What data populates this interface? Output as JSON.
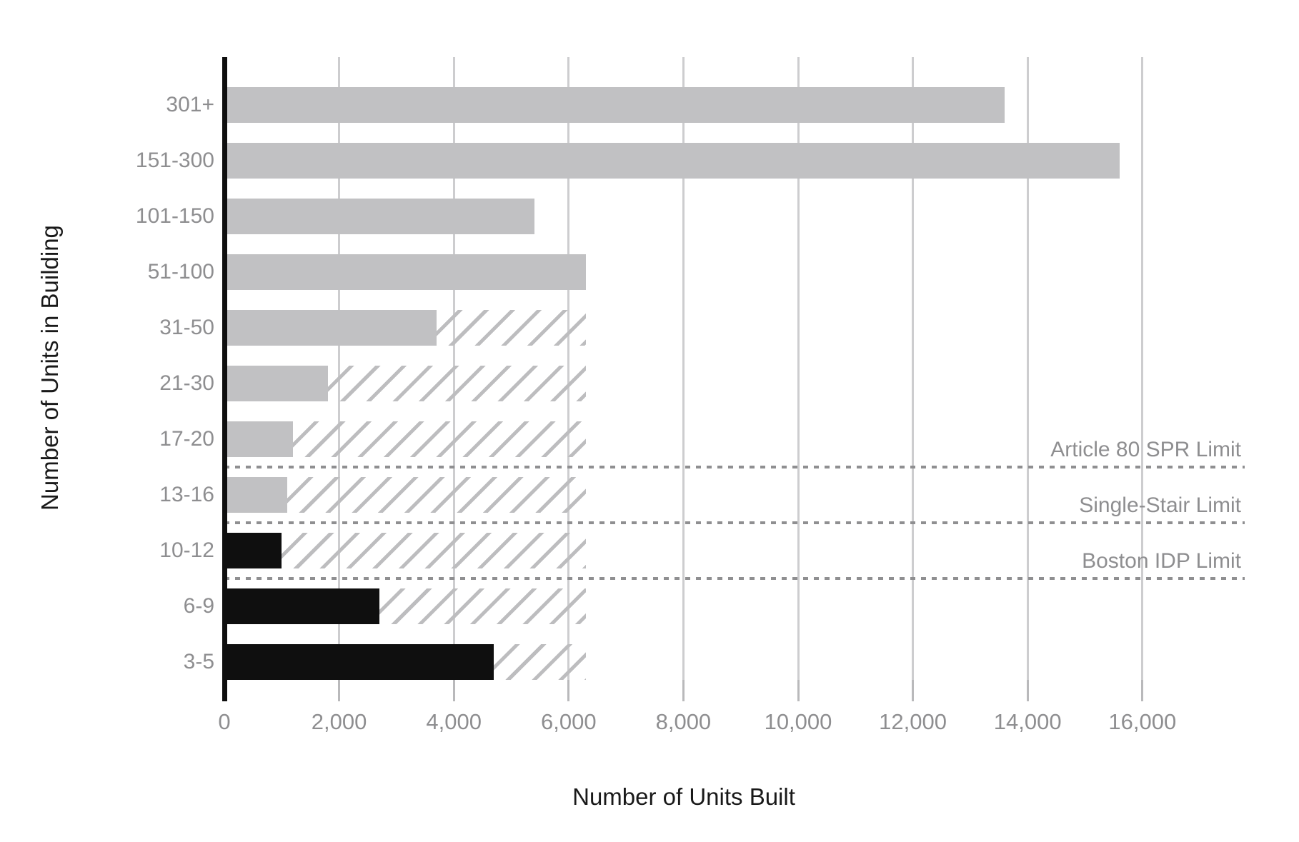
{
  "chart_data": {
    "type": "bar",
    "orientation": "horizontal",
    "xlabel": "Number of Units Built",
    "ylabel": "Number of Units in Building",
    "categories": [
      "301+",
      "151-300",
      "101-150",
      "51-100",
      "31-50",
      "21-30",
      "17-20",
      "13-16",
      "10-12",
      "6-9",
      "3-5"
    ],
    "bars": [
      {
        "category": "301+",
        "value": 13600,
        "color": "gray",
        "hatch_to": null
      },
      {
        "category": "151-300",
        "value": 15600,
        "color": "gray",
        "hatch_to": null
      },
      {
        "category": "101-150",
        "value": 5400,
        "color": "gray",
        "hatch_to": null
      },
      {
        "category": "51-100",
        "value": 6300,
        "color": "gray",
        "hatch_to": null
      },
      {
        "category": "31-50",
        "value": 3700,
        "color": "gray",
        "hatch_to": 6300
      },
      {
        "category": "21-30",
        "value": 1800,
        "color": "gray",
        "hatch_to": 6300
      },
      {
        "category": "17-20",
        "value": 1200,
        "color": "gray",
        "hatch_to": 6300
      },
      {
        "category": "13-16",
        "value": 1100,
        "color": "gray",
        "hatch_to": 6300
      },
      {
        "category": "10-12",
        "value": 1000,
        "color": "black",
        "hatch_to": 6300
      },
      {
        "category": "6-9",
        "value": 2700,
        "color": "black",
        "hatch_to": 6300
      },
      {
        "category": "3-5",
        "value": 4700,
        "color": "black",
        "hatch_to": 6300
      }
    ],
    "limit_lines": [
      {
        "label": "Article 80 SPR Limit",
        "after_category": "17-20"
      },
      {
        "label": "Single-Stair Limit",
        "after_category": "13-16"
      },
      {
        "label": "Boston IDP Limit",
        "after_category": "10-12"
      }
    ],
    "xlim": [
      0,
      18000
    ],
    "xticks": [
      0,
      2000,
      4000,
      6000,
      8000,
      10000,
      12000,
      14000,
      16000
    ],
    "xtick_labels": [
      "0",
      "2,000",
      "4,000",
      "6,000",
      "8,000",
      "10,000",
      "12,000",
      "14,000",
      "16,000"
    ],
    "grid": "vertical-only",
    "legend": "none",
    "colors": {
      "gray_bar": "#c1c1c3",
      "black_bar": "#0f0f0f",
      "hatch": "#bdbdbf",
      "gridline": "#cdcdcf",
      "dashed_line": "#8f8f91",
      "tick_label": "#8e8e90",
      "category_label": "#8e8e90",
      "limit_label": "#8e8e90",
      "axis_title": "#191919",
      "background": "#ffffff"
    }
  }
}
